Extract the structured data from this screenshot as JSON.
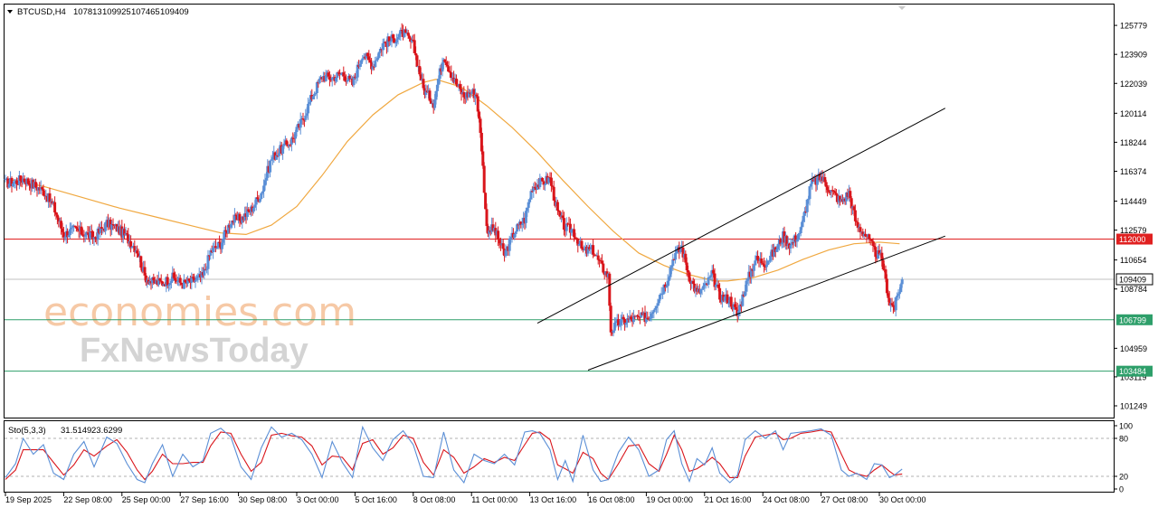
{
  "header": {
    "symbol": "BTCUSD,H4",
    "open": "107813",
    "high": "109925",
    "low": "107465",
    "close": "109409"
  },
  "indicator": {
    "label": "Sto(5,3,3)",
    "k_value": "31.5149",
    "d_value": "23.6299",
    "levels": [
      80,
      20
    ],
    "scale_labels": [
      "100",
      "80",
      "20",
      "0"
    ]
  },
  "watermark": {
    "line1": "economies.com",
    "line2": "FxNewsToday"
  },
  "colors": {
    "bull": "#5b8fd6",
    "bear": "#d9151b",
    "ma": "#f0a840",
    "resistance": "#e02020",
    "support": "#2e9f6a",
    "price_line": "#c0c0c0",
    "stoch_k": "#5b8fd6",
    "stoch_d": "#d9151b"
  },
  "chart_data": {
    "type": "candlestick",
    "symbol": "BTCUSD",
    "timeframe": "H4",
    "x_labels": [
      "19 Sep 2025",
      "22 Sep 08:00",
      "25 Sep 00:00",
      "27 Sep 16:00",
      "30 Sep 08:00",
      "3 Oct 00:00",
      "5 Oct 16:00",
      "8 Oct 08:00",
      "11 Oct 00:00",
      "13 Oct 16:00",
      "16 Oct 08:00",
      "19 Oct 00:00",
      "21 Oct 16:00",
      "24 Oct 08:00",
      "27 Oct 08:00",
      "30 Oct 00:00"
    ],
    "y_ticks": [
      125779,
      123909,
      122039,
      120114,
      118244,
      116374,
      114449,
      112579,
      110654,
      108784,
      104959,
      103119,
      101249
    ],
    "ylim": [
      100900,
      126600
    ],
    "levels": [
      {
        "name": "resistance",
        "value": 112000,
        "label": "112000"
      },
      {
        "name": "current",
        "value": 109409,
        "label": "109409"
      },
      {
        "name": "support1",
        "value": 106799,
        "label": "106799"
      },
      {
        "name": "support2",
        "value": 103484,
        "label": "103484"
      }
    ],
    "channel": {
      "lower": [
        [
          "16 Oct 08:00",
          103550
        ],
        [
          "30 Oct 00:00",
          110600
        ]
      ],
      "upper": [
        [
          "16 Oct 08:00",
          108300
        ],
        [
          "30 Oct 00:00",
          118200
        ]
      ]
    },
    "price_path": [
      [
        0,
        115600
      ],
      [
        8,
        115700
      ],
      [
        14,
        115900
      ],
      [
        22,
        115500
      ],
      [
        30,
        115100
      ],
      [
        38,
        114100
      ],
      [
        46,
        112300
      ],
      [
        54,
        112600
      ],
      [
        62,
        112400
      ],
      [
        70,
        112100
      ],
      [
        80,
        113000
      ],
      [
        88,
        112700
      ],
      [
        96,
        112100
      ],
      [
        104,
        111300
      ],
      [
        110,
        109600
      ],
      [
        116,
        109200
      ],
      [
        124,
        109200
      ],
      [
        132,
        109500
      ],
      [
        140,
        109100
      ],
      [
        148,
        109300
      ],
      [
        156,
        109600
      ],
      [
        162,
        111200
      ],
      [
        170,
        111700
      ],
      [
        178,
        113200
      ],
      [
        186,
        113300
      ],
      [
        194,
        113900
      ],
      [
        202,
        115000
      ],
      [
        210,
        117200
      ],
      [
        218,
        117800
      ],
      [
        226,
        118400
      ],
      [
        234,
        119600
      ],
      [
        242,
        121200
      ],
      [
        250,
        122500
      ],
      [
        258,
        122400
      ],
      [
        266,
        122700
      ],
      [
        274,
        122000
      ],
      [
        282,
        124000
      ],
      [
        290,
        123200
      ],
      [
        298,
        124600
      ],
      [
        306,
        124900
      ],
      [
        314,
        125300
      ],
      [
        322,
        124500
      ],
      [
        330,
        121700
      ],
      [
        338,
        120800
      ],
      [
        346,
        123900
      ],
      [
        354,
        122300
      ],
      [
        362,
        121200
      ],
      [
        368,
        121500
      ],
      [
        372,
        121300
      ],
      [
        376,
        117900
      ],
      [
        380,
        112700
      ],
      [
        386,
        112600
      ],
      [
        394,
        111000
      ],
      [
        402,
        112500
      ],
      [
        410,
        113300
      ],
      [
        416,
        115400
      ],
      [
        422,
        115600
      ],
      [
        430,
        115900
      ],
      [
        436,
        113700
      ],
      [
        442,
        112700
      ],
      [
        448,
        112600
      ],
      [
        456,
        111200
      ],
      [
        464,
        111300
      ],
      [
        470,
        110300
      ],
      [
        476,
        109600
      ],
      [
        478,
        106100
      ],
      [
        484,
        106600
      ],
      [
        492,
        106800
      ],
      [
        500,
        106900
      ],
      [
        508,
        107000
      ],
      [
        516,
        108300
      ],
      [
        522,
        109300
      ],
      [
        528,
        111000
      ],
      [
        534,
        111400
      ],
      [
        540,
        109600
      ],
      [
        546,
        108500
      ],
      [
        552,
        108900
      ],
      [
        558,
        109700
      ],
      [
        564,
        108300
      ],
      [
        572,
        108100
      ],
      [
        578,
        107100
      ],
      [
        584,
        108900
      ],
      [
        592,
        110700
      ],
      [
        600,
        110500
      ],
      [
        608,
        111300
      ],
      [
        614,
        112200
      ],
      [
        620,
        111600
      ],
      [
        628,
        112600
      ],
      [
        636,
        115500
      ],
      [
        644,
        116000
      ],
      [
        652,
        115100
      ],
      [
        660,
        114400
      ],
      [
        666,
        115000
      ],
      [
        672,
        112900
      ],
      [
        680,
        112200
      ],
      [
        686,
        111200
      ],
      [
        692,
        110700
      ],
      [
        698,
        107900
      ],
      [
        702,
        107600
      ],
      [
        708,
        109400
      ]
    ],
    "ma_path": [
      [
        0,
        115900
      ],
      [
        30,
        115400
      ],
      [
        60,
        114700
      ],
      [
        90,
        114000
      ],
      [
        120,
        113400
      ],
      [
        150,
        112800
      ],
      [
        170,
        112400
      ],
      [
        190,
        112300
      ],
      [
        210,
        112900
      ],
      [
        230,
        114100
      ],
      [
        250,
        116100
      ],
      [
        270,
        118300
      ],
      [
        290,
        120000
      ],
      [
        310,
        121300
      ],
      [
        330,
        122100
      ],
      [
        340,
        122300
      ],
      [
        360,
        121800
      ],
      [
        380,
        120600
      ],
      [
        400,
        119200
      ],
      [
        420,
        117600
      ],
      [
        440,
        115800
      ],
      [
        460,
        114100
      ],
      [
        480,
        112500
      ],
      [
        500,
        111100
      ],
      [
        520,
        110300
      ],
      [
        540,
        109700
      ],
      [
        560,
        109300
      ],
      [
        570,
        109300
      ],
      [
        590,
        109500
      ],
      [
        610,
        110000
      ],
      [
        630,
        110700
      ],
      [
        650,
        111300
      ],
      [
        670,
        111700
      ],
      [
        690,
        111800
      ],
      [
        706,
        111700
      ]
    ],
    "stochastic": {
      "ylim": [
        0,
        100
      ],
      "levels": [
        80,
        20
      ],
      "k_last": 31.5149,
      "d_last": 23.6299,
      "k_path": [
        [
          0,
          18
        ],
        [
          8,
          40
        ],
        [
          14,
          80
        ],
        [
          22,
          55
        ],
        [
          30,
          70
        ],
        [
          38,
          25
        ],
        [
          46,
          15
        ],
        [
          54,
          55
        ],
        [
          62,
          75
        ],
        [
          70,
          35
        ],
        [
          80,
          82
        ],
        [
          88,
          72
        ],
        [
          96,
          40
        ],
        [
          104,
          15
        ],
        [
          110,
          10
        ],
        [
          116,
          40
        ],
        [
          124,
          70
        ],
        [
          132,
          20
        ],
        [
          140,
          55
        ],
        [
          148,
          35
        ],
        [
          156,
          45
        ],
        [
          162,
          88
        ],
        [
          170,
          96
        ],
        [
          178,
          82
        ],
        [
          186,
          35
        ],
        [
          194,
          15
        ],
        [
          202,
          65
        ],
        [
          210,
          98
        ],
        [
          218,
          82
        ],
        [
          226,
          88
        ],
        [
          234,
          78
        ],
        [
          242,
          55
        ],
        [
          250,
          18
        ],
        [
          258,
          75
        ],
        [
          266,
          42
        ],
        [
          274,
          18
        ],
        [
          282,
          98
        ],
        [
          290,
          65
        ],
        [
          298,
          45
        ],
        [
          306,
          78
        ],
        [
          314,
          92
        ],
        [
          322,
          70
        ],
        [
          330,
          20
        ],
        [
          338,
          18
        ],
        [
          346,
          90
        ],
        [
          354,
          30
        ],
        [
          362,
          10
        ],
        [
          370,
          55
        ],
        [
          378,
          45
        ],
        [
          386,
          40
        ],
        [
          394,
          55
        ],
        [
          402,
          38
        ],
        [
          410,
          90
        ],
        [
          416,
          92
        ],
        [
          422,
          88
        ],
        [
          430,
          62
        ],
        [
          436,
          15
        ],
        [
          442,
          45
        ],
        [
          448,
          12
        ],
        [
          456,
          85
        ],
        [
          464,
          30
        ],
        [
          470,
          12
        ],
        [
          476,
          15
        ],
        [
          484,
          58
        ],
        [
          492,
          82
        ],
        [
          500,
          62
        ],
        [
          508,
          20
        ],
        [
          516,
          30
        ],
        [
          522,
          78
        ],
        [
          528,
          92
        ],
        [
          534,
          40
        ],
        [
          540,
          12
        ],
        [
          546,
          48
        ],
        [
          552,
          38
        ],
        [
          558,
          65
        ],
        [
          564,
          25
        ],
        [
          572,
          10
        ],
        [
          578,
          22
        ],
        [
          584,
          78
        ],
        [
          592,
          92
        ],
        [
          600,
          80
        ],
        [
          608,
          92
        ],
        [
          614,
          62
        ],
        [
          620,
          88
        ],
        [
          628,
          90
        ],
        [
          636,
          92
        ],
        [
          644,
          95
        ],
        [
          652,
          85
        ],
        [
          660,
          30
        ],
        [
          666,
          20
        ],
        [
          672,
          25
        ],
        [
          680,
          15
        ],
        [
          686,
          40
        ],
        [
          692,
          38
        ],
        [
          698,
          18
        ],
        [
          702,
          22
        ],
        [
          708,
          31.5
        ]
      ],
      "d_path": [
        [
          0,
          15
        ],
        [
          8,
          30
        ],
        [
          14,
          62
        ],
        [
          22,
          62
        ],
        [
          30,
          62
        ],
        [
          38,
          42
        ],
        [
          46,
          22
        ],
        [
          54,
          38
        ],
        [
          62,
          62
        ],
        [
          70,
          52
        ],
        [
          80,
          68
        ],
        [
          88,
          78
        ],
        [
          96,
          58
        ],
        [
          104,
          30
        ],
        [
          110,
          15
        ],
        [
          116,
          28
        ],
        [
          124,
          55
        ],
        [
          132,
          40
        ],
        [
          140,
          40
        ],
        [
          148,
          42
        ],
        [
          156,
          42
        ],
        [
          162,
          68
        ],
        [
          170,
          90
        ],
        [
          178,
          88
        ],
        [
          186,
          55
        ],
        [
          194,
          28
        ],
        [
          202,
          42
        ],
        [
          210,
          85
        ],
        [
          218,
          88
        ],
        [
          226,
          84
        ],
        [
          234,
          82
        ],
        [
          242,
          68
        ],
        [
          250,
          38
        ],
        [
          258,
          52
        ],
        [
          266,
          50
        ],
        [
          274,
          30
        ],
        [
          282,
          72
        ],
        [
          290,
          78
        ],
        [
          298,
          55
        ],
        [
          306,
          65
        ],
        [
          314,
          85
        ],
        [
          322,
          80
        ],
        [
          330,
          42
        ],
        [
          338,
          22
        ],
        [
          346,
          62
        ],
        [
          354,
          50
        ],
        [
          362,
          25
        ],
        [
          370,
          35
        ],
        [
          378,
          48
        ],
        [
          386,
          42
        ],
        [
          394,
          50
        ],
        [
          402,
          45
        ],
        [
          410,
          70
        ],
        [
          416,
          88
        ],
        [
          422,
          90
        ],
        [
          430,
          78
        ],
        [
          436,
          38
        ],
        [
          442,
          32
        ],
        [
          448,
          25
        ],
        [
          456,
          58
        ],
        [
          464,
          48
        ],
        [
          470,
          25
        ],
        [
          476,
          15
        ],
        [
          484,
          40
        ],
        [
          492,
          68
        ],
        [
          500,
          70
        ],
        [
          508,
          40
        ],
        [
          516,
          28
        ],
        [
          522,
          55
        ],
        [
          528,
          85
        ],
        [
          534,
          62
        ],
        [
          540,
          28
        ],
        [
          546,
          32
        ],
        [
          552,
          40
        ],
        [
          558,
          50
        ],
        [
          564,
          40
        ],
        [
          572,
          18
        ],
        [
          578,
          18
        ],
        [
          584,
          52
        ],
        [
          592,
          82
        ],
        [
          600,
          85
        ],
        [
          608,
          88
        ],
        [
          614,
          78
        ],
        [
          620,
          80
        ],
        [
          628,
          88
        ],
        [
          636,
          90
        ],
        [
          644,
          93
        ],
        [
          652,
          90
        ],
        [
          660,
          55
        ],
        [
          666,
          30
        ],
        [
          672,
          24
        ],
        [
          680,
          20
        ],
        [
          686,
          30
        ],
        [
          692,
          38
        ],
        [
          698,
          28
        ],
        [
          702,
          22
        ],
        [
          708,
          23.6
        ]
      ]
    }
  }
}
